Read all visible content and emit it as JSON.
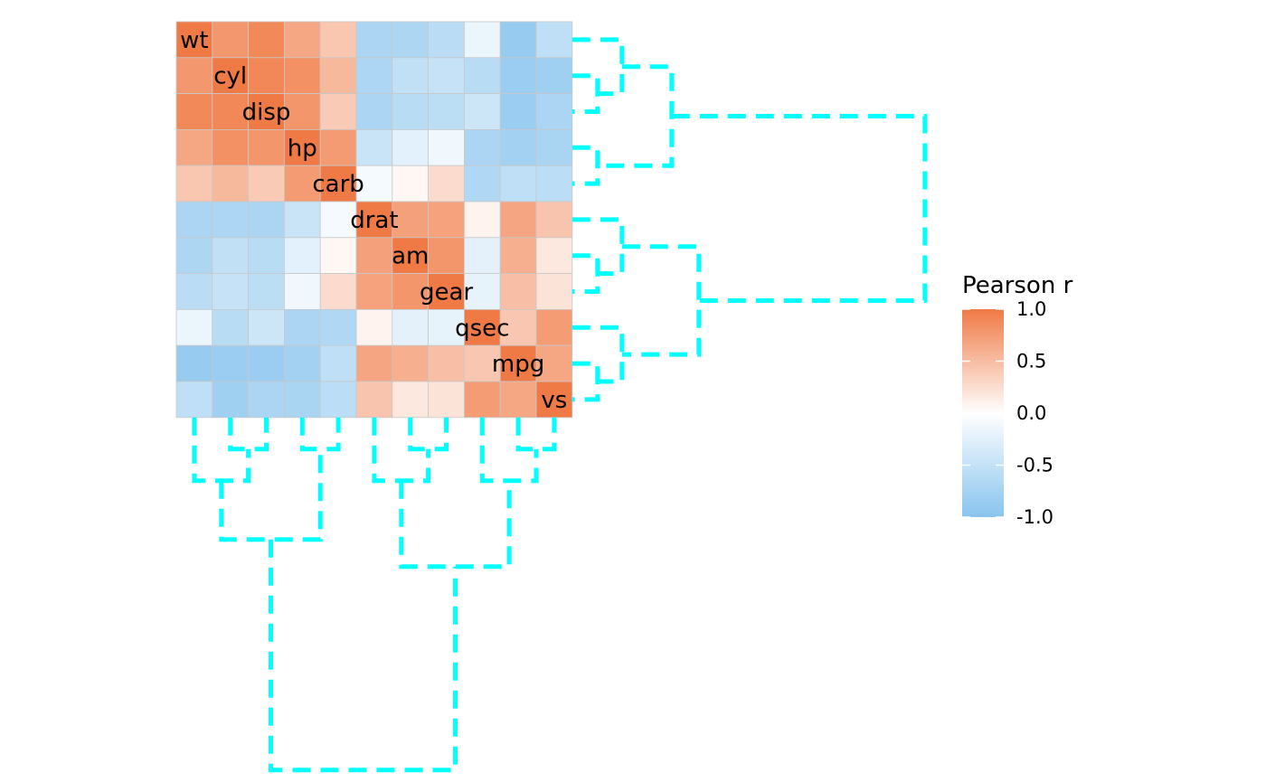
{
  "chart_data": {
    "type": "heatmap",
    "variables": [
      "wt",
      "cyl",
      "disp",
      "hp",
      "carb",
      "drat",
      "am",
      "gear",
      "qsec",
      "mpg",
      "vs"
    ],
    "matrix": [
      [
        1.0,
        0.78,
        0.89,
        0.66,
        0.43,
        -0.71,
        -0.69,
        -0.58,
        -0.17,
        -0.87,
        -0.55
      ],
      [
        0.78,
        1.0,
        0.9,
        0.83,
        0.53,
        -0.7,
        -0.52,
        -0.49,
        -0.59,
        -0.85,
        -0.81
      ],
      [
        0.89,
        0.9,
        1.0,
        0.79,
        0.39,
        -0.71,
        -0.59,
        -0.56,
        -0.43,
        -0.85,
        -0.71
      ],
      [
        0.66,
        0.83,
        0.79,
        1.0,
        0.75,
        -0.45,
        -0.24,
        -0.13,
        -0.71,
        -0.78,
        -0.72
      ],
      [
        0.43,
        0.53,
        0.39,
        0.75,
        1.0,
        -0.09,
        0.06,
        0.27,
        -0.66,
        -0.55,
        -0.57
      ],
      [
        -0.71,
        -0.7,
        -0.71,
        -0.45,
        -0.09,
        1.0,
        0.71,
        0.7,
        0.09,
        0.68,
        0.44
      ],
      [
        -0.69,
        -0.52,
        -0.59,
        -0.24,
        0.06,
        0.71,
        1.0,
        0.79,
        -0.23,
        0.6,
        0.17
      ],
      [
        -0.58,
        -0.49,
        -0.56,
        -0.13,
        0.27,
        0.7,
        0.79,
        1.0,
        -0.21,
        0.48,
        0.21
      ],
      [
        -0.17,
        -0.59,
        -0.43,
        -0.71,
        -0.66,
        0.09,
        -0.23,
        -0.21,
        1.0,
        0.42,
        0.74
      ],
      [
        -0.87,
        -0.85,
        -0.85,
        -0.78,
        -0.55,
        0.68,
        0.6,
        0.48,
        0.42,
        1.0,
        0.66
      ],
      [
        -0.55,
        -0.81,
        -0.71,
        -0.72,
        -0.57,
        0.44,
        0.17,
        0.21,
        0.74,
        0.66,
        1.0
      ]
    ],
    "legend": {
      "title": "Pearson r",
      "ticks": [
        "1.0",
        "0.5",
        "0.0",
        "-0.5",
        "-1.0"
      ],
      "tick_values": [
        1.0,
        0.5,
        0.0,
        -0.5,
        -1.0
      ],
      "range": [
        -1,
        1
      ],
      "placement": "right"
    },
    "colors": {
      "high": "#F07A45",
      "mid": "#FFFFFF",
      "low": "#88C4EE",
      "dendrogram": "#00FFFF",
      "cell_border": "#C8C8C8"
    },
    "dendrogram": {
      "style": "dashed",
      "merges": [
        [
          "cyl",
          "disp"
        ],
        [
          "wt",
          "cyl+disp"
        ],
        [
          "hp",
          "carb"
        ],
        [
          "wt+cyl+disp",
          "hp+carb"
        ],
        [
          "am",
          "gear"
        ],
        [
          "drat",
          "am+gear"
        ],
        [
          "mpg",
          "vs"
        ],
        [
          "qsec",
          "mpg+vs"
        ],
        [
          "drat+am+gear",
          "qsec+mpg+vs"
        ],
        [
          "wt+cyl+disp+hp+carb",
          "drat+am+gear+qsec+mpg+vs"
        ]
      ]
    }
  }
}
